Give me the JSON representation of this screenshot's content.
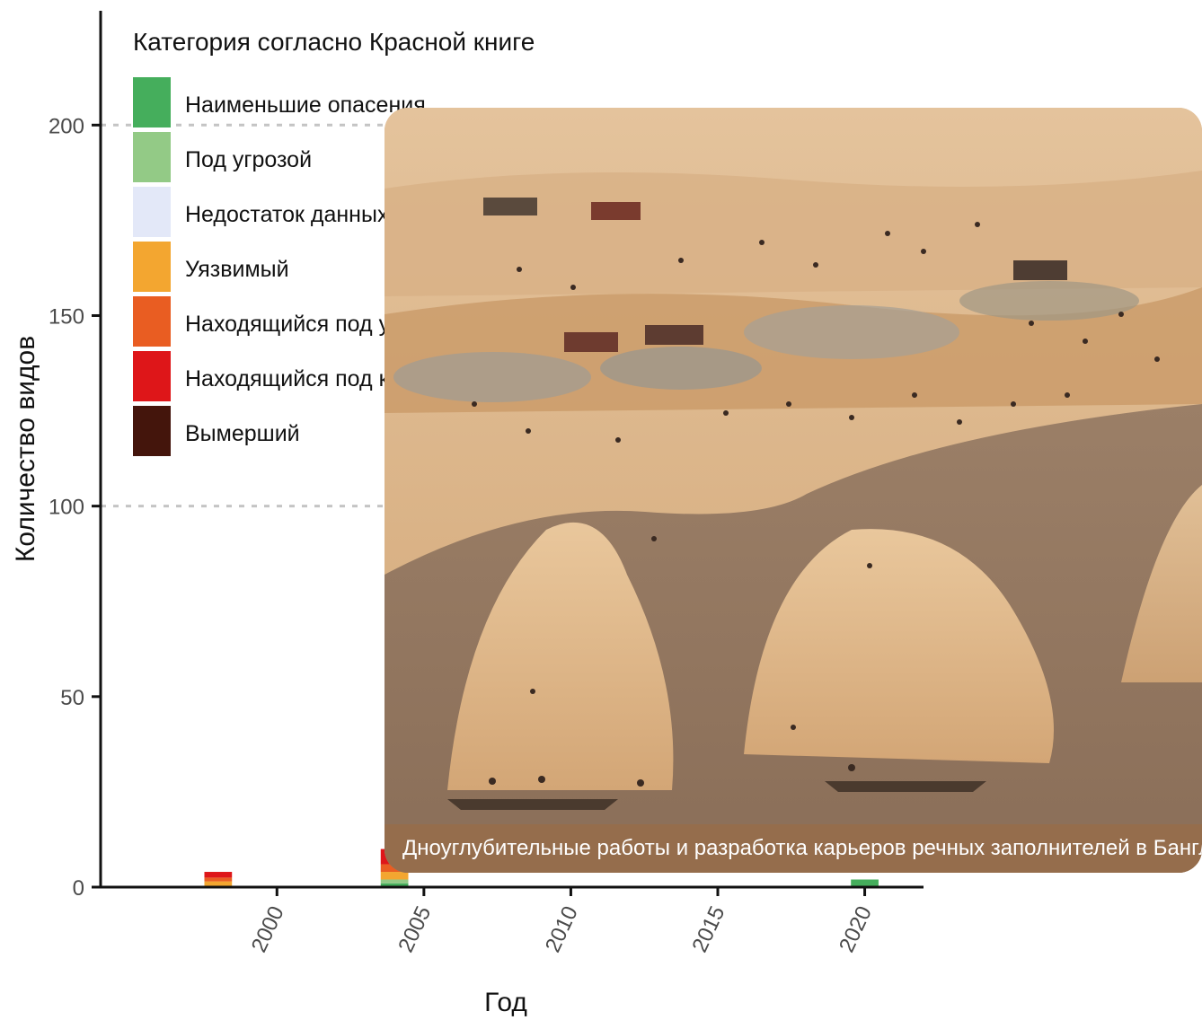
{
  "chart_data": {
    "type": "bar",
    "stacked": true,
    "xlabel": "Год",
    "ylabel": "Количество видов",
    "xlim": [
      1994,
      2022
    ],
    "ylim": [
      0,
      230
    ],
    "x_ticks": [
      "2000",
      "2005",
      "2010",
      "2015",
      "2020"
    ],
    "y_ticks": [
      "0",
      "50",
      "100",
      "150",
      "200"
    ],
    "reference_lines": [
      200,
      100
    ],
    "legend": {
      "title": "Категория согласно Красной книге",
      "position": "top-left",
      "items": [
        {
          "label": "Наименьшие опасения",
          "color": "#45ae5c"
        },
        {
          "label": "Под угрозой",
          "color": "#93ca86"
        },
        {
          "label": "Недостаток данных",
          "color": "#e3e8f8"
        },
        {
          "label": "Уязвимый",
          "color": "#f3a630"
        },
        {
          "label": "Находящийся под угро",
          "color": "#e95d22"
        },
        {
          "label": "Находящийся под крит",
          "color": "#de1619"
        },
        {
          "label": "Вымерший",
          "color": "#44150c"
        }
      ]
    },
    "series": [
      {
        "category": "Наименьшие опасения",
        "points": [
          {
            "x": 2004,
            "y": 1
          },
          {
            "x": 2020,
            "y": 2
          }
        ]
      },
      {
        "category": "Под угрозой",
        "points": [
          {
            "x": 2004,
            "y": 1
          }
        ]
      },
      {
        "category": "Уязвимый",
        "points": [
          {
            "x": 1998,
            "y": 1.5
          },
          {
            "x": 2004,
            "y": 2
          }
        ]
      },
      {
        "category": "Находящийся под угро",
        "points": [
          {
            "x": 1998,
            "y": 1
          },
          {
            "x": 2004,
            "y": 2
          }
        ]
      },
      {
        "category": "Находящийся под крит",
        "points": [
          {
            "x": 1998,
            "y": 1.5
          },
          {
            "x": 2004,
            "y": 4
          }
        ]
      }
    ]
  },
  "photo": {
    "caption": "Дноуглубительные работы и разработка карьеров речных заполнителей в Бангладеш"
  }
}
